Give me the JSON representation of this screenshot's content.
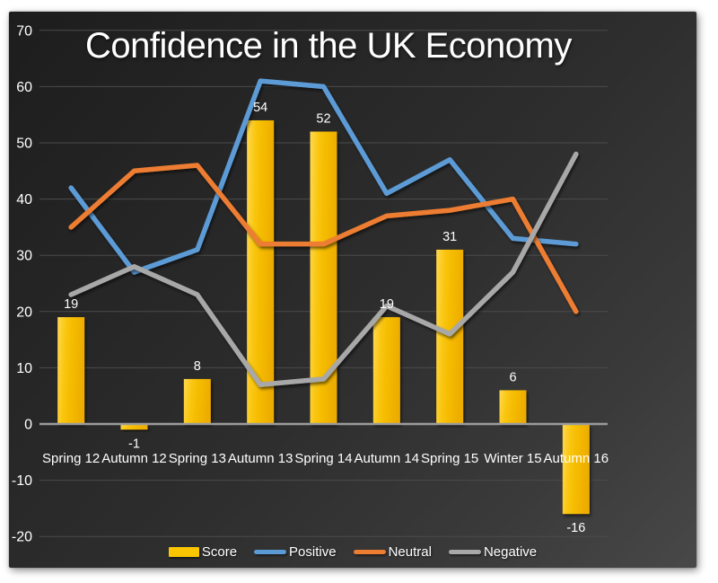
{
  "chart_data": {
    "type": "combo-bar-line",
    "title": "Confidence in the UK Economy",
    "categories": [
      "Spring 12",
      "Autumn 12",
      "Spring 13",
      "Autumn 13",
      "Spring 14",
      "Autumn 14",
      "Spring 15",
      "Winter 15",
      "Autumn 16"
    ],
    "series": [
      {
        "name": "Score",
        "type": "bar",
        "color": "#FBC503",
        "values": [
          19,
          -1,
          8,
          54,
          52,
          19,
          31,
          6,
          -16
        ],
        "data_labels": true
      },
      {
        "name": "Positive",
        "type": "line",
        "color": "#5B9BD5",
        "values": [
          42,
          27,
          31,
          61,
          60,
          41,
          47,
          33,
          32
        ]
      },
      {
        "name": "Neutral",
        "type": "line",
        "color": "#ED7D31",
        "values": [
          35,
          45,
          46,
          32,
          32,
          37,
          38,
          40,
          20
        ]
      },
      {
        "name": "Negative",
        "type": "line",
        "color": "#A8A8A8",
        "values": [
          23,
          28,
          23,
          7,
          8,
          21,
          16,
          27,
          48
        ]
      }
    ],
    "y_axis": {
      "min": -20,
      "max": 70,
      "step": 10,
      "ticks": [
        70,
        60,
        50,
        40,
        30,
        20,
        10,
        0,
        -10,
        -20
      ]
    },
    "x_axis": {
      "label_position": "below-zero-line"
    },
    "grid": true,
    "legend_position": "bottom",
    "theme": {
      "panel_gradient": [
        "#1d1d1d",
        "#484848"
      ],
      "page_background": "#ffffff",
      "gridline_color": "#4b4b4b",
      "axis_line_color": "#9b9b9b",
      "text_color": "#ffffff",
      "bar_gradient": [
        "#FFD851",
        "#F9C408",
        "#EDAC00"
      ]
    }
  }
}
